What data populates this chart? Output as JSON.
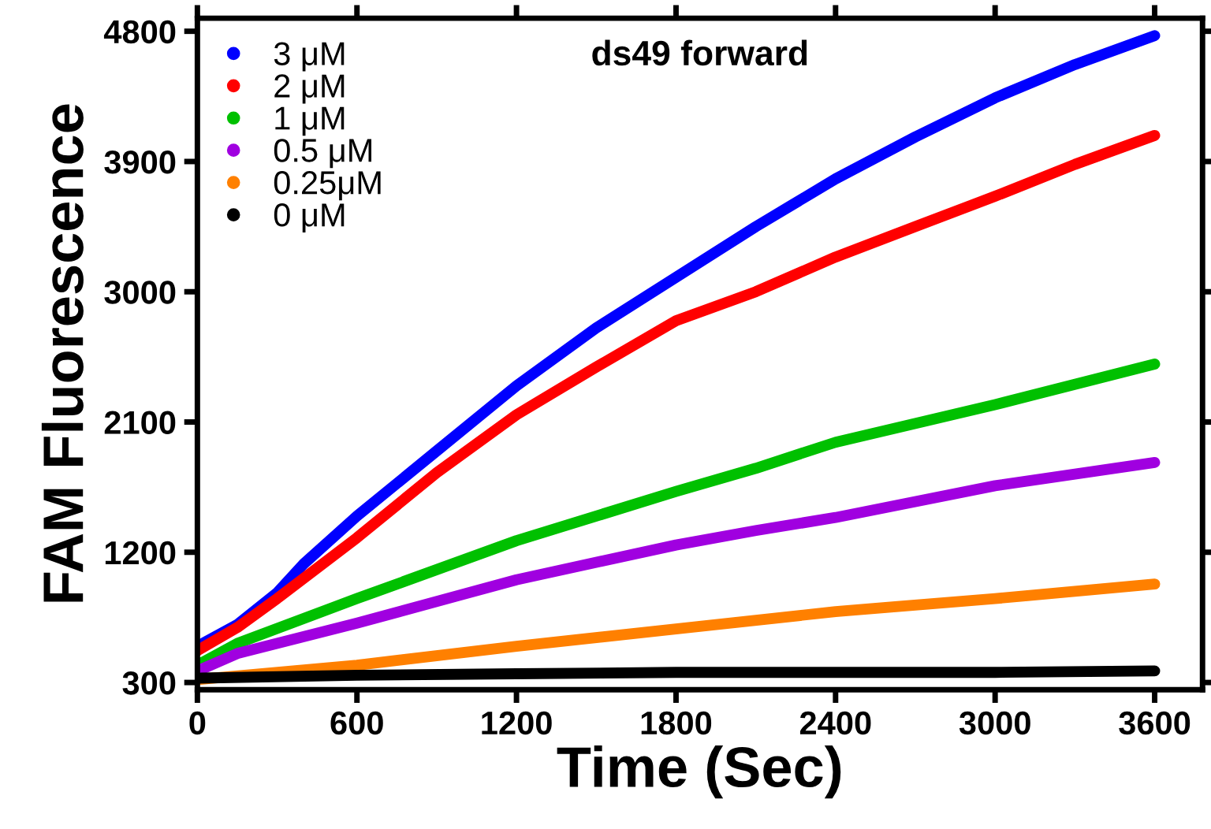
{
  "chart_data": {
    "type": "line",
    "title": "ds49 forward",
    "xlabel": "Time (Sec)",
    "ylabel": "FAM Fluorescence",
    "xlim": [
      0,
      3780
    ],
    "ylim": [
      250,
      4890
    ],
    "xticks": [
      0,
      600,
      1200,
      1800,
      2400,
      3000,
      3600
    ],
    "yticks": [
      300,
      1200,
      2100,
      3000,
      3900,
      4800
    ],
    "legend": "top left",
    "grid": false,
    "series": [
      {
        "name": "3 μM",
        "color": "#0000ff",
        "x": [
          0,
          150,
          300,
          400,
          600,
          900,
          1200,
          1500,
          1800,
          2100,
          2400,
          2700,
          3000,
          3300,
          3600
        ],
        "values": [
          550,
          700,
          920,
          1120,
          1450,
          1900,
          2350,
          2750,
          3100,
          3450,
          3780,
          4070,
          4340,
          4570,
          4770
        ]
      },
      {
        "name": "2 μM",
        "color": "#ff0000",
        "x": [
          0,
          150,
          300,
          600,
          900,
          1200,
          1500,
          1800,
          2100,
          2400,
          2700,
          3000,
          3300,
          3600
        ],
        "values": [
          520,
          680,
          880,
          1300,
          1750,
          2150,
          2480,
          2800,
          3000,
          3240,
          3450,
          3660,
          3880,
          4080
        ]
      },
      {
        "name": "1 μM",
        "color": "#00c000",
        "x": [
          0,
          150,
          600,
          1200,
          1800,
          2100,
          2400,
          3000,
          3600
        ],
        "values": [
          420,
          570,
          880,
          1280,
          1620,
          1780,
          1960,
          2220,
          2500
        ]
      },
      {
        "name": "0.5 μM",
        "color": "#a000e0",
        "x": [
          0,
          150,
          600,
          1200,
          1800,
          2100,
          2400,
          3000,
          3600
        ],
        "values": [
          380,
          500,
          710,
          1010,
          1250,
          1350,
          1440,
          1660,
          1820
        ]
      },
      {
        "name": "0.25μM",
        "color": "#ff8000",
        "x": [
          0,
          600,
          1200,
          1800,
          2400,
          3000,
          3600
        ],
        "values": [
          320,
          420,
          550,
          670,
          790,
          880,
          980
        ]
      },
      {
        "name": "0 μM",
        "color": "#000000",
        "x": [
          0,
          600,
          1200,
          1800,
          2400,
          3000,
          3600
        ],
        "values": [
          330,
          350,
          360,
          370,
          370,
          370,
          380
        ]
      }
    ]
  }
}
